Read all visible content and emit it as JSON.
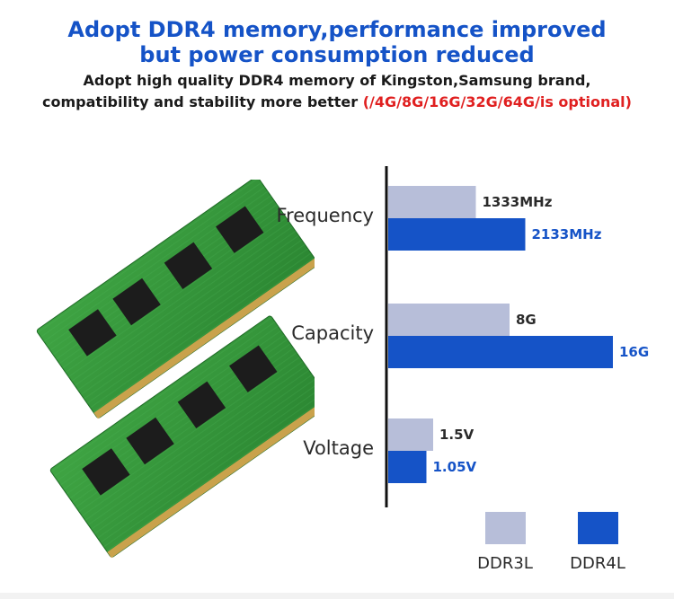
{
  "header": {
    "headline_line1": "Adopt DDR4 memory,performance improved",
    "headline_line2": "but power consumption reduced",
    "sub_line1": "Adopt high quality DDR4 memory of Kingston,Samsung brand,",
    "sub_line2_main": "compatibility and stability more better ",
    "sub_line2_red": "(/4G/8G/16G/32G/64G/is optional)"
  },
  "colors": {
    "headline": "#1553c7",
    "ddr3l": "#b7bed9",
    "ddr4l": "#1553c7",
    "highlight_red": "#e02020",
    "pcb_green": "#3a9a3a"
  },
  "chart_data": {
    "type": "bar",
    "orientation": "horizontal",
    "categories": [
      "Frequency",
      "Capacity",
      "Voltage"
    ],
    "series": [
      {
        "name": "DDR3L",
        "labels": [
          "1333MHz",
          "8G",
          "1.5V"
        ],
        "values": [
          1333,
          8,
          1.5
        ]
      },
      {
        "name": "DDR4L",
        "labels": [
          "2133MHz",
          "16G",
          "1.05V"
        ],
        "values": [
          2133,
          16,
          1.05
        ]
      }
    ],
    "relative_lengths": [
      [
        0.39,
        0.61
      ],
      [
        0.54,
        1.0
      ],
      [
        0.2,
        0.17
      ]
    ],
    "legend": [
      "DDR3L",
      "DDR4L"
    ],
    "legend_placement": "bottom-right",
    "grid": false
  }
}
